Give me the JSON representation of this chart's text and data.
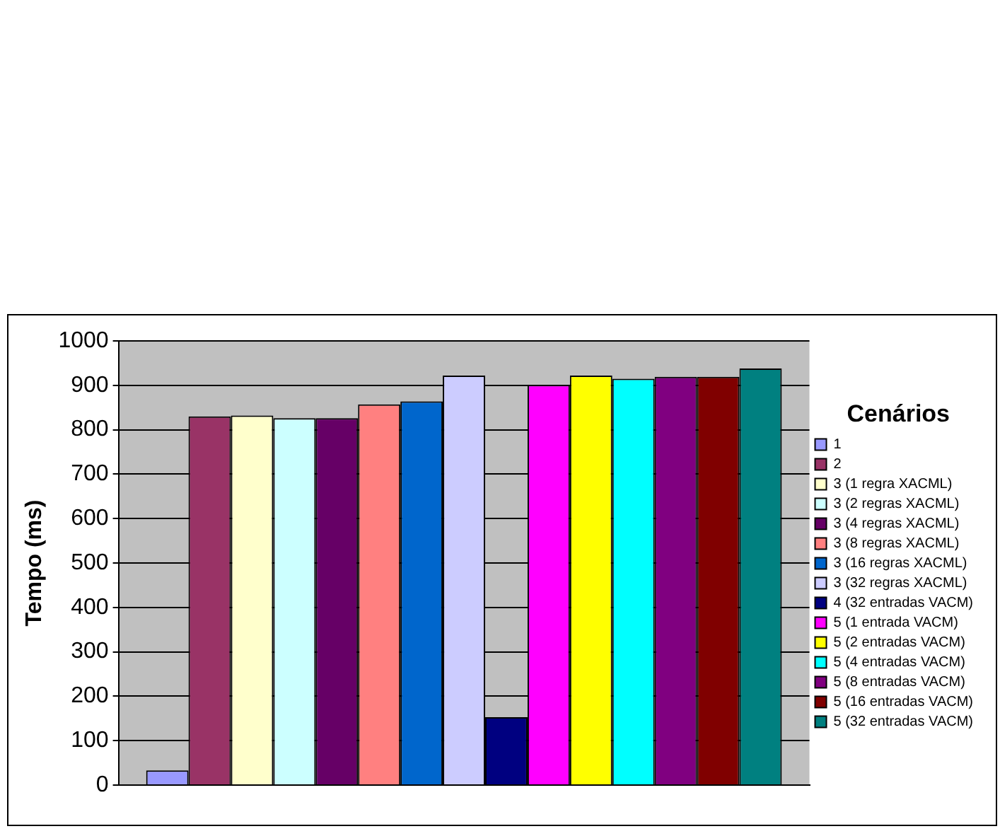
{
  "chart_data": {
    "type": "bar",
    "ylabel": "Tempo (ms)",
    "legend_title": "Cenários",
    "categories": [
      null
    ],
    "ylim": [
      0,
      1000
    ],
    "yticks": [
      0,
      100,
      200,
      300,
      400,
      500,
      600,
      700,
      800,
      900,
      1000
    ],
    "grid": "y",
    "legend": "right",
    "series": [
      {
        "name": "1",
        "color": "#9999ff",
        "values": [
          33
        ]
      },
      {
        "name": "2",
        "color": "#993366",
        "values": [
          830
        ]
      },
      {
        "name": "3 (1 regra XACML)",
        "color": "#ffffcc",
        "values": [
          832
        ]
      },
      {
        "name": "3 (2 regras XACML)",
        "color": "#ccffff",
        "values": [
          826
        ]
      },
      {
        "name": "3 (4 regras XACML)",
        "color": "#660066",
        "values": [
          826
        ]
      },
      {
        "name": "3 (8 regras XACML)",
        "color": "#ff8080",
        "values": [
          857
        ]
      },
      {
        "name": "3 (16 regras XACML)",
        "color": "#0066cc",
        "values": [
          864
        ]
      },
      {
        "name": "3 (32 regras XACML)",
        "color": "#ccccff",
        "values": [
          922
        ]
      },
      {
        "name": "4 (32 entradas VACM)",
        "color": "#000080",
        "values": [
          153
        ]
      },
      {
        "name": "5 (1 entrada VACM)",
        "color": "#ff00ff",
        "values": [
          901
        ]
      },
      {
        "name": "5 (2 entradas VACM)",
        "color": "#ffff00",
        "values": [
          922
        ]
      },
      {
        "name": "5 (4 entradas VACM)",
        "color": "#00ffff",
        "values": [
          915
        ]
      },
      {
        "name": "5 (8 entradas VACM)",
        "color": "#800080",
        "values": [
          919
        ]
      },
      {
        "name": "5 (16 entradas VACM)",
        "color": "#800000",
        "values": [
          919
        ]
      },
      {
        "name": "5 (32 entradas VACM)",
        "color": "#008080",
        "values": [
          938
        ]
      }
    ]
  }
}
